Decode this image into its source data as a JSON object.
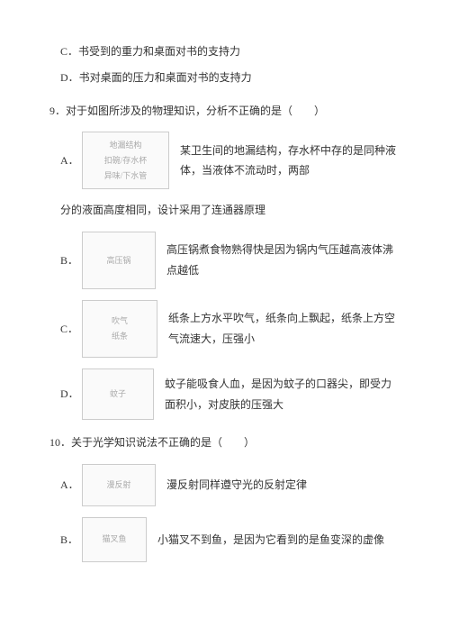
{
  "q_prev": {
    "optC": "C．书受到的重力和桌面对书的支持力",
    "optD": "D．书对桌面的压力和桌面对书的支持力"
  },
  "q9": {
    "stem": "9．对于如图所涉及的物理知识，分析不正确的是（　　）",
    "A_label": "A．",
    "A_imgAlt": "地漏结构\n扣碗/存水杯\n异味/下水管",
    "A_text1": "某卫生间的地漏结构，存水杯中存的是同种液体，当液体不流动时，两部",
    "A_cont": "分的液面高度相同，设计采用了连通器原理",
    "B_label": "B．",
    "B_imgAlt": "高压锅",
    "B_text": "高压锅煮食物熟得快是因为锅内气压越高液体沸点越低",
    "C_label": "C．",
    "C_imgAlt": "吹气\n纸条",
    "C_text": "纸条上方水平吹气，纸条向上飘起，纸条上方空气流速大，压强小",
    "D_label": "D．",
    "D_imgAlt": "蚊子",
    "D_text": "蚊子能吸食人血，是因为蚊子的口器尖，即受力面积小，对皮肤的压强大"
  },
  "q10": {
    "stem": "10．关于光学知识说法不正确的是（　　）",
    "A_label": "A．",
    "A_imgAlt": "漫反射",
    "A_text": "漫反射同样遵守光的反射定律",
    "B_label": "B．",
    "B_imgAlt": "猫叉鱼",
    "B_text": "小猫叉不到鱼，是因为它看到的是鱼变深的虚像"
  },
  "imgSizes": {
    "q9A_w": 95,
    "q9A_h": 62,
    "q9B_w": 80,
    "q9B_h": 62,
    "q9C_w": 82,
    "q9C_h": 62,
    "q9D_w": 78,
    "q9D_h": 55,
    "q10A_w": 80,
    "q10A_h": 45,
    "q10B_w": 70,
    "q10B_h": 48
  }
}
